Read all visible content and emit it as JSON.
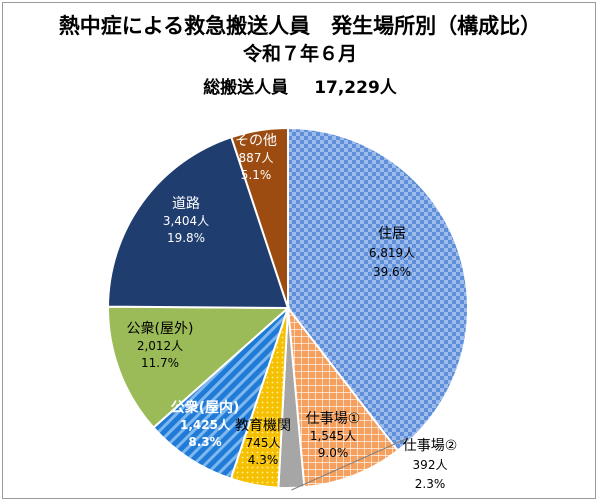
{
  "chart_data": {
    "type": "pie",
    "title": "熱中症による救急搬送人員　発生場所別（構成比）",
    "subtitle": "令和７年６月",
    "total_label": "総搬送人員",
    "total_value": "17,229人",
    "slices": [
      {
        "name": "住居",
        "count": "6,819人",
        "percent": "39.6%",
        "value": 39.6,
        "color": "#7fa6e0",
        "pattern": "checker",
        "text_color": "#000000"
      },
      {
        "name": "仕事場①",
        "count": "1,545人",
        "percent": "9.0%",
        "value": 9.0,
        "color": "#f08a3c",
        "pattern": "grid",
        "text_color": "#000000"
      },
      {
        "name": "仕事場②",
        "count": "392人",
        "percent": "2.3%",
        "value": 2.3,
        "color": "#a6a6a6",
        "pattern": "none",
        "text_color": "#000000"
      },
      {
        "name": "教育機関",
        "count": "745人",
        "percent": "4.3%",
        "value": 4.3,
        "color": "#f5be00",
        "pattern": "dots",
        "text_color": "#000000"
      },
      {
        "name": "公衆(屋内)",
        "count": "1,425人",
        "percent": "8.3%",
        "value": 8.3,
        "color": "#1f7bd6",
        "pattern": "stripes",
        "text_color": "#ffffff"
      },
      {
        "name": "公衆(屋外)",
        "count": "2,012人",
        "percent": "11.7%",
        "value": 11.7,
        "color": "#9bbb59",
        "pattern": "none",
        "text_color": "#000000"
      },
      {
        "name": "道路",
        "count": "3,404人",
        "percent": "19.8%",
        "value": 19.8,
        "color": "#1f3d6e",
        "pattern": "none",
        "text_color": "#ffffff"
      },
      {
        "name": "その他",
        "count": "887人",
        "percent": "5.1%",
        "value": 5.1,
        "color": "#9c4c10",
        "pattern": "none",
        "text_color": "#ffffff"
      }
    ]
  }
}
